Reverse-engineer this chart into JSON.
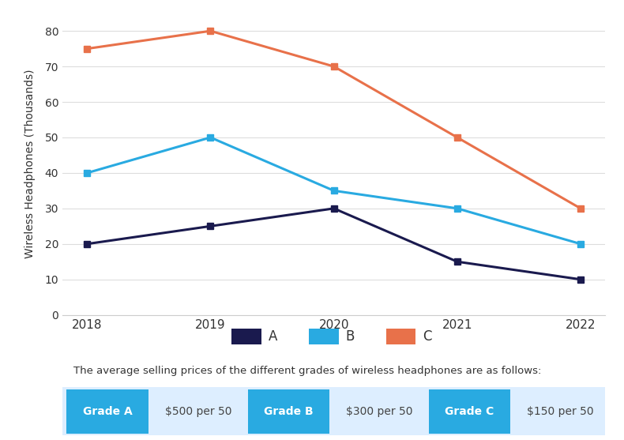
{
  "years": [
    2018,
    2019,
    2020,
    2021,
    2022
  ],
  "series_A": [
    20,
    25,
    30,
    15,
    10
  ],
  "series_B": [
    40,
    50,
    35,
    30,
    20
  ],
  "series_C": [
    75,
    80,
    70,
    50,
    30
  ],
  "color_A": "#1a1a4e",
  "color_B": "#29aae1",
  "color_C": "#e8714a",
  "ylabel": "Wireless Headphones (Thousands)",
  "ylim": [
    0,
    85
  ],
  "yticks": [
    0,
    10,
    20,
    30,
    40,
    50,
    60,
    70,
    80
  ],
  "legend_labels": [
    "A",
    "B",
    "C"
  ],
  "background_color": "#ffffff",
  "grid_color": "#dddddd",
  "subtitle": "The average selling prices of the different grades of wireless headphones are as follows:",
  "grade_labels": [
    "Grade A",
    "Grade B",
    "Grade C"
  ],
  "grade_prices": [
    "$500 per 50",
    "$300 per 50",
    "$150 per 50"
  ],
  "grade_button_color": "#29aae1",
  "grade_button_text_color": "#ffffff",
  "grade_price_text_color": "#444444",
  "grade_row_bg": "#ddeeff",
  "marker": "s",
  "marker_size": 6,
  "line_width": 2.2
}
